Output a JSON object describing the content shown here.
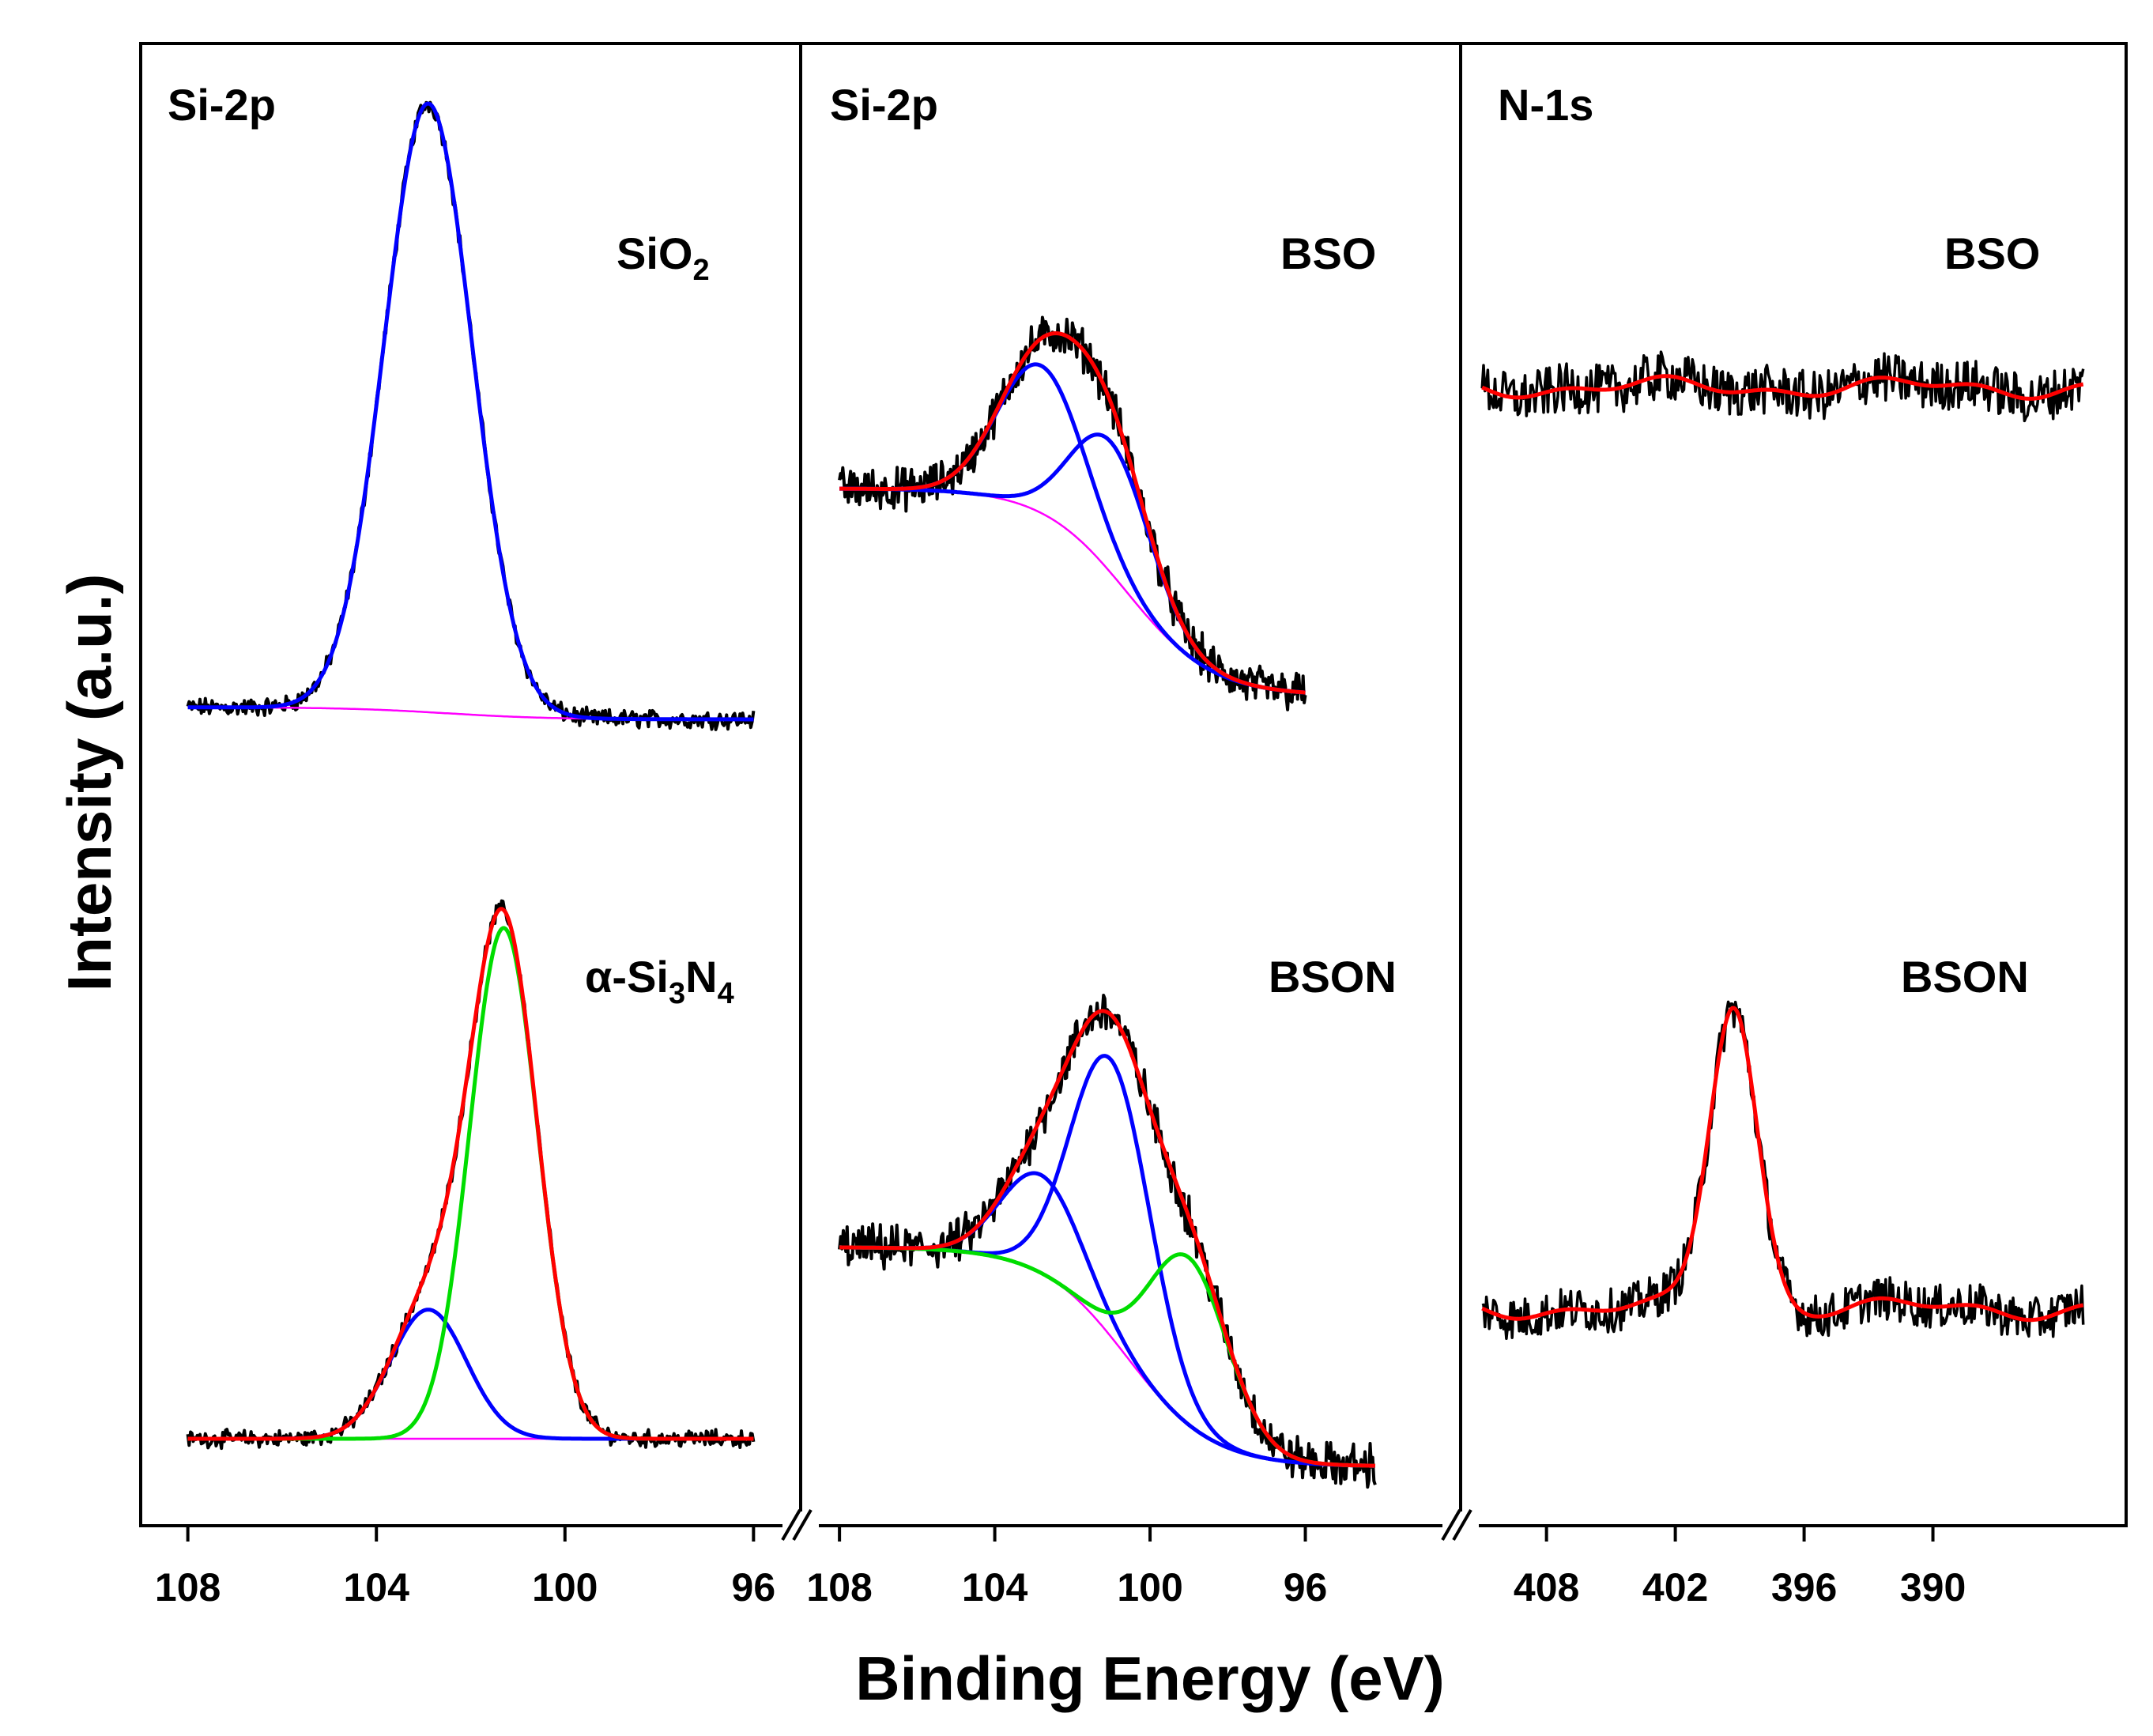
{
  "figure": {
    "ylabel": "Intensity (a.u.)",
    "xlabel": "Binding Energy (eV)"
  },
  "colors": {
    "raw": "#000000",
    "envelope": "#ff0000",
    "comp_blue": "#0000ff",
    "comp_green": "#00dd00",
    "background": "#ff00ff"
  },
  "chart_data": [
    {
      "type": "line",
      "panel": "left",
      "title": "Si-2p",
      "xlim": [
        109,
        95
      ],
      "xticks": [
        108,
        104,
        100,
        96
      ],
      "xtick_labels": [
        "108",
        "104",
        "100",
        "96"
      ],
      "samples": [
        {
          "label": "SiO₂",
          "label_main": "SiO",
          "label_sub": "2",
          "baseline": 0.0,
          "background": {
            "start": 0.02,
            "end": 0.0
          },
          "components": [
            {
              "color": "blue",
              "center": 102.9,
              "fwhm": 2.2,
              "height": 1.0
            }
          ],
          "noise": 0.012
        },
        {
          "label": "α-Si₃N₄",
          "label_parts": [
            "α-Si",
            "3",
            "N",
            "4"
          ],
          "baseline": 0.0,
          "background": {
            "start": 0.0,
            "end": 0.0
          },
          "components": [
            {
              "color": "blue",
              "center": 102.9,
              "fwhm": 1.9,
              "height": 0.23
            },
            {
              "color": "green",
              "center": 101.3,
              "fwhm": 1.7,
              "height": 0.91
            }
          ],
          "noise": 0.012
        }
      ]
    },
    {
      "type": "line",
      "panel": "middle",
      "title": "Si-2p",
      "xlim": [
        109,
        92
      ],
      "xticks": [
        108,
        104,
        100,
        96
      ],
      "xtick_labels": [
        "108",
        "104",
        "100",
        "96"
      ],
      "samples": [
        {
          "label": "BSO",
          "xrange": [
            108,
            96
          ],
          "background": {
            "start": 0.38,
            "end": 0.0
          },
          "components": [
            {
              "color": "blue",
              "center": 102.8,
              "fwhm": 2.6,
              "height": 0.27
            },
            {
              "color": "blue",
              "center": 101.0,
              "fwhm": 2.4,
              "height": 0.24
            }
          ],
          "noise": 0.03
        },
        {
          "label": "BSON",
          "xrange": [
            108,
            94.2
          ],
          "background": {
            "start": 0.38,
            "end": 0.0
          },
          "components": [
            {
              "color": "blue",
              "center": 102.8,
              "fwhm": 2.4,
              "height": 0.17
            },
            {
              "color": "blue",
              "center": 101.0,
              "fwhm": 2.4,
              "height": 0.48
            },
            {
              "color": "green",
              "center": 99.0,
              "fwhm": 2.4,
              "height": 0.29
            }
          ],
          "noise": 0.03
        }
      ]
    },
    {
      "type": "line",
      "panel": "right",
      "title": "N-1s",
      "xlim": [
        412,
        381
      ],
      "xticks": [
        408,
        402,
        396,
        390
      ],
      "xtick_labels": [
        "408",
        "402",
        "396",
        "390"
      ],
      "samples": [
        {
          "label": "BSO",
          "xrange": [
            411,
            383
          ],
          "peak": null,
          "noise": 0.035
        },
        {
          "label": "BSON",
          "xrange": [
            411,
            383
          ],
          "peak": {
            "center": 399.3,
            "fwhm": 2.6,
            "height": 0.42
          },
          "noise": 0.03
        }
      ]
    }
  ]
}
